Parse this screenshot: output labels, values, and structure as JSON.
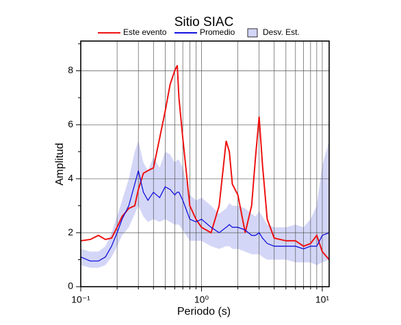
{
  "chart_data": {
    "type": "line",
    "title": "Sitio SIAC",
    "x_label": "Periodo (s)",
    "y_label": "Amplitud",
    "x_scale": "log",
    "grid": true,
    "xlim": [
      0.1,
      11.4
    ],
    "ylim": [
      0,
      9.1
    ],
    "xticks": [
      {
        "value": 0.1,
        "label": "10⁻¹"
      },
      {
        "value": 1,
        "label": "10⁰"
      },
      {
        "value": 10,
        "label": "10¹"
      }
    ],
    "xminorticks": [
      0.2,
      0.3,
      0.4,
      0.5,
      0.6,
      0.7,
      0.8,
      0.9,
      2,
      3,
      4,
      5,
      6,
      7,
      8,
      9
    ],
    "yticks": [
      0,
      2,
      4,
      6,
      8
    ],
    "yminorticks": [
      1,
      3,
      5,
      7,
      9
    ],
    "x": [
      0.1,
      0.12,
      0.14,
      0.16,
      0.18,
      0.2,
      0.22,
      0.25,
      0.28,
      0.3,
      0.33,
      0.36,
      0.4,
      0.45,
      0.5,
      0.55,
      0.6,
      0.63,
      0.65,
      0.7,
      0.8,
      0.9,
      1.0,
      1.2,
      1.4,
      1.6,
      1.7,
      1.8,
      2.0,
      2.3,
      2.6,
      2.8,
      3.0,
      3.2,
      3.5,
      4,
      5,
      6,
      7,
      8,
      9,
      10,
      11.4
    ],
    "series": [
      {
        "name": "Este evento",
        "color": "#ee1111",
        "values": [
          1.7,
          1.75,
          1.9,
          1.75,
          1.8,
          2.2,
          2.6,
          2.9,
          3.0,
          3.6,
          4.2,
          4.3,
          4.4,
          5.5,
          6.5,
          7.5,
          8.0,
          8.2,
          7.0,
          5.5,
          3.0,
          2.5,
          2.2,
          2.0,
          3.0,
          5.4,
          5.0,
          3.8,
          3.4,
          2.0,
          3.0,
          4.8,
          6.3,
          4.5,
          2.5,
          1.8,
          1.7,
          1.7,
          1.5,
          1.6,
          1.9,
          1.3,
          1.0
        ]
      },
      {
        "name": "Promedio",
        "color": "#1111dd",
        "values": [
          1.1,
          0.95,
          0.95,
          1.1,
          1.5,
          2.0,
          2.5,
          3.0,
          3.8,
          4.3,
          3.5,
          3.2,
          3.5,
          3.3,
          3.7,
          3.6,
          3.4,
          3.5,
          3.5,
          3.2,
          2.5,
          2.4,
          2.5,
          2.2,
          2.0,
          2.2,
          2.3,
          2.2,
          2.2,
          2.1,
          1.9,
          1.9,
          2.0,
          1.8,
          1.6,
          1.5,
          1.5,
          1.5,
          1.4,
          1.5,
          1.5,
          1.9,
          2.0
        ]
      },
      {
        "name": "Desv. Est.",
        "color": "#d4d6f7",
        "lower": [
          0.8,
          0.7,
          0.7,
          0.8,
          1.1,
          1.5,
          1.9,
          2.2,
          2.7,
          3.0,
          2.6,
          2.4,
          2.5,
          2.4,
          2.5,
          2.4,
          2.3,
          2.3,
          2.3,
          2.1,
          1.7,
          1.7,
          1.7,
          1.5,
          1.4,
          1.5,
          1.5,
          1.4,
          1.4,
          1.3,
          1.2,
          1.2,
          1.2,
          1.1,
          1.0,
          1.0,
          1.0,
          0.9,
          0.9,
          0.9,
          0.8,
          0.9,
          1.0
        ],
        "upper": [
          1.4,
          1.3,
          1.3,
          1.5,
          2.0,
          2.6,
          3.2,
          4.0,
          5.0,
          5.4,
          4.6,
          4.3,
          4.8,
          4.4,
          5.0,
          4.9,
          4.6,
          4.7,
          4.7,
          4.4,
          3.4,
          3.2,
          3.3,
          3.0,
          2.7,
          2.9,
          3.1,
          3.0,
          3.0,
          2.9,
          2.7,
          2.6,
          2.8,
          2.6,
          2.3,
          2.2,
          2.2,
          2.3,
          2.2,
          2.5,
          3.0,
          4.5,
          5.4
        ]
      }
    ]
  }
}
